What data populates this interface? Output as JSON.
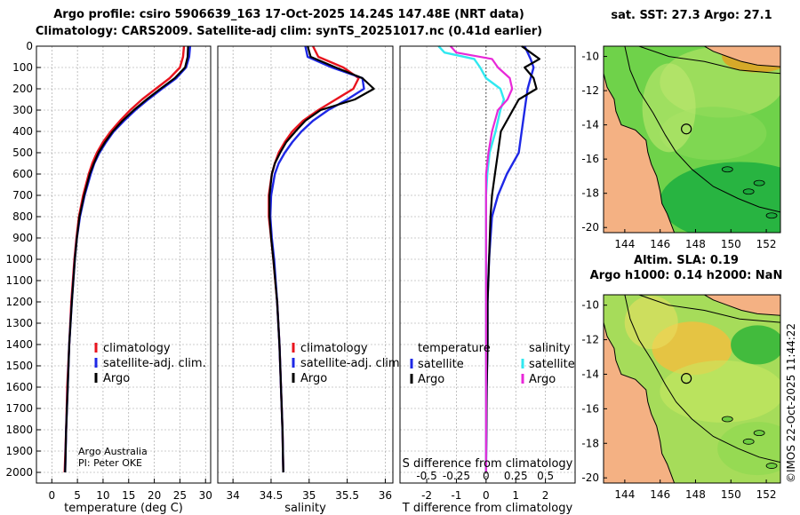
{
  "title_line1": "Argo profile: csiro 5906639_163 17-Oct-2025 14.24S 147.48E (NRT data)",
  "title_line2": "Climatology: CARS2009. Satellite-adj clim: synTS_20251017.nc (0.41d earlier)",
  "credit_line1": "Argo Australia",
  "credit_line2": "PI: Peter OKE",
  "stamp": "©IMOS 22-Oct-2025 11:44:22",
  "colors": {
    "climatology": "#e8141e",
    "satellite": "#1e28e6",
    "argo": "#000000",
    "sat_salinity": "#30e8f0",
    "argo_salinity": "#e828d8",
    "land": "#f4b183"
  },
  "chart_data": [
    {
      "type": "line",
      "name": "temperature-profile",
      "xlabel": "temperature (deg C)",
      "ylabel": "",
      "xlim": [
        -3,
        31
      ],
      "ylim": [
        2050,
        0
      ],
      "xticks": [
        0,
        5,
        10,
        15,
        20,
        25,
        30
      ],
      "yticks": [
        0,
        100,
        200,
        300,
        400,
        500,
        600,
        700,
        800,
        900,
        1000,
        1100,
        1200,
        1300,
        1400,
        1500,
        1600,
        1700,
        1800,
        1900,
        2000
      ],
      "legend": [
        "climatology",
        "satellite-adj. clim.",
        "Argo"
      ],
      "legend_position": "lower-right",
      "series": [
        {
          "name": "climatology",
          "depth": [
            0,
            50,
            100,
            150,
            200,
            250,
            300,
            350,
            400,
            450,
            500,
            550,
            600,
            700,
            800,
            900,
            1000,
            1200,
            1400,
            1600,
            1800,
            2000
          ],
          "values": [
            25.8,
            25.6,
            25.0,
            23.0,
            20.3,
            17.6,
            15.3,
            13.3,
            11.5,
            10.0,
            8.8,
            7.9,
            7.2,
            6.1,
            5.3,
            4.8,
            4.4,
            3.8,
            3.4,
            3.0,
            2.8,
            2.5
          ]
        },
        {
          "name": "satellite-adj. clim.",
          "depth": [
            0,
            50,
            100,
            150,
            200,
            250,
            300,
            350,
            400,
            450,
            500,
            550,
            600,
            700,
            800,
            900,
            1000,
            1200,
            1400,
            1600,
            1800,
            2000
          ],
          "values": [
            27.0,
            26.8,
            26.2,
            24.3,
            21.5,
            18.8,
            16.3,
            14.1,
            12.1,
            10.6,
            9.3,
            8.3,
            7.6,
            6.4,
            5.5,
            4.9,
            4.5,
            3.9,
            3.4,
            3.1,
            2.8,
            2.6
          ]
        },
        {
          "name": "Argo",
          "depth": [
            0,
            50,
            100,
            150,
            200,
            250,
            300,
            350,
            400,
            450,
            500,
            550,
            600,
            700,
            800,
            900,
            1000,
            1200,
            1400,
            1600,
            1800,
            2000
          ],
          "values": [
            26.6,
            26.5,
            26.0,
            24.0,
            21.2,
            18.5,
            16.0,
            13.8,
            11.9,
            10.4,
            9.1,
            8.2,
            7.4,
            6.3,
            5.4,
            4.9,
            4.5,
            3.9,
            3.4,
            3.1,
            2.8,
            2.6
          ]
        }
      ]
    },
    {
      "type": "line",
      "name": "salinity-profile",
      "xlabel": "salinity",
      "ylabel": "",
      "xlim": [
        33.8,
        36.1
      ],
      "ylim": [
        2050,
        0
      ],
      "xticks": [
        34,
        34.5,
        35,
        35.5,
        36
      ],
      "legend": [
        "climatology",
        "satellite-adj. clim.",
        "Argo"
      ],
      "legend_position": "lower-right",
      "series": [
        {
          "name": "climatology",
          "depth": [
            0,
            50,
            100,
            150,
            200,
            250,
            300,
            350,
            400,
            450,
            500,
            550,
            600,
            700,
            800,
            900,
            1000,
            1200,
            1400,
            1600,
            1800,
            2000
          ],
          "values": [
            35.05,
            35.12,
            35.45,
            35.65,
            35.58,
            35.35,
            35.12,
            34.92,
            34.78,
            34.68,
            34.6,
            34.55,
            34.51,
            34.47,
            34.47,
            34.5,
            34.53,
            34.58,
            34.61,
            34.63,
            34.65,
            34.66
          ]
        },
        {
          "name": "satellite-adj. clim.",
          "depth": [
            0,
            50,
            100,
            150,
            200,
            250,
            300,
            350,
            400,
            450,
            500,
            550,
            600,
            700,
            800,
            900,
            1000,
            1200,
            1400,
            1600,
            1800,
            2000
          ],
          "values": [
            34.95,
            34.98,
            35.3,
            35.7,
            35.72,
            35.5,
            35.25,
            35.05,
            34.9,
            34.78,
            34.68,
            34.6,
            34.55,
            34.5,
            34.49,
            34.51,
            34.54,
            34.58,
            34.61,
            34.63,
            34.65,
            34.66
          ]
        },
        {
          "name": "Argo",
          "depth": [
            0,
            50,
            100,
            150,
            200,
            250,
            300,
            350,
            400,
            450,
            500,
            550,
            600,
            700,
            800,
            900,
            1000,
            1200,
            1400,
            1600,
            1800,
            2000
          ],
          "values": [
            34.98,
            35.02,
            35.35,
            35.7,
            35.85,
            35.6,
            35.15,
            34.95,
            34.82,
            34.7,
            34.62,
            34.55,
            34.51,
            34.48,
            34.48,
            34.5,
            34.53,
            34.58,
            34.61,
            34.63,
            34.65,
            34.66
          ]
        }
      ]
    },
    {
      "type": "line",
      "name": "difference-profile",
      "xlabel": "T difference from climatology",
      "x2label": "S difference from climatology",
      "xlim": [
        -2.9,
        3.0
      ],
      "ylim": [
        2050,
        0
      ],
      "xticks": [
        -2,
        -1,
        0,
        1,
        2
      ],
      "x2ticks": [
        "-0.5",
        "-0.25",
        "0",
        "0.25",
        "0.5"
      ],
      "legend_temperature_title": "temperature",
      "legend_salinity_title": "salinity",
      "legend_temperature": [
        "satellite",
        "Argo"
      ],
      "legend_salinity": [
        "satellite",
        "Argo"
      ],
      "series": [
        {
          "name": "temperature satellite",
          "depth": [
            0,
            30,
            60,
            100,
            150,
            200,
            300,
            400,
            500,
            600,
            700,
            800,
            900,
            1000,
            1200,
            1400,
            1600,
            2000
          ],
          "values": [
            1.3,
            1.4,
            1.5,
            1.6,
            1.5,
            1.4,
            1.3,
            1.2,
            1.1,
            0.7,
            0.4,
            0.2,
            0.15,
            0.1,
            0.05,
            0.05,
            0.02,
            0.0
          ]
        },
        {
          "name": "temperature Argo",
          "depth": [
            0,
            30,
            60,
            100,
            150,
            200,
            250,
            300,
            400,
            500,
            600,
            700,
            800,
            1000,
            1200,
            1400,
            1600,
            2000
          ],
          "values": [
            1.2,
            1.5,
            1.8,
            1.3,
            1.6,
            1.7,
            1.1,
            0.9,
            0.5,
            0.4,
            0.3,
            0.2,
            0.15,
            0.1,
            0.05,
            0.05,
            0.02,
            0.0
          ]
        },
        {
          "name": "salinity satellite",
          "depth": [
            0,
            30,
            60,
            100,
            150,
            200,
            250,
            300,
            400,
            500,
            600,
            700,
            800,
            1000,
            1200,
            1400,
            1600,
            2000
          ],
          "values": [
            -0.4,
            -0.35,
            -0.1,
            -0.05,
            0.0,
            0.12,
            0.15,
            0.12,
            0.08,
            0.03,
            0.01,
            0.0,
            0.0,
            0.0,
            0.0,
            0.0,
            0.0,
            0.0
          ]
        },
        {
          "name": "salinity Argo",
          "depth": [
            0,
            30,
            60,
            100,
            150,
            200,
            250,
            300,
            400,
            500,
            600,
            700,
            800,
            1000,
            1200,
            1400,
            1600,
            2000
          ],
          "values": [
            -0.3,
            -0.25,
            0.05,
            0.1,
            0.2,
            0.22,
            0.18,
            0.1,
            0.05,
            0.02,
            0.0,
            0.0,
            0.0,
            0.0,
            0.0,
            0.0,
            0.0,
            0.0
          ]
        }
      ]
    },
    {
      "type": "heatmap",
      "name": "sst-map",
      "title": "sat. SST: 27.3 Argo: 27.1",
      "xticks": [
        144,
        146,
        148,
        150,
        152
      ],
      "yticks": [
        -10,
        -12,
        -14,
        -16,
        -18,
        -20
      ],
      "xlim": [
        142.8,
        152.8
      ],
      "ylim": [
        -20.3,
        -9.4
      ],
      "marker": {
        "lon": 147.48,
        "lat": -14.24
      }
    },
    {
      "type": "heatmap",
      "name": "sla-map",
      "title_line1": "Altim. SLA: 0.19",
      "title_line2": "Argo h1000: 0.14 h2000: NaN",
      "xticks": [
        144,
        146,
        148,
        150,
        152
      ],
      "yticks": [
        -10,
        -12,
        -14,
        -16,
        -18,
        -20
      ],
      "xlim": [
        142.8,
        152.8
      ],
      "ylim": [
        -20.3,
        -9.4
      ],
      "marker": {
        "lon": 147.48,
        "lat": -14.24
      }
    }
  ]
}
